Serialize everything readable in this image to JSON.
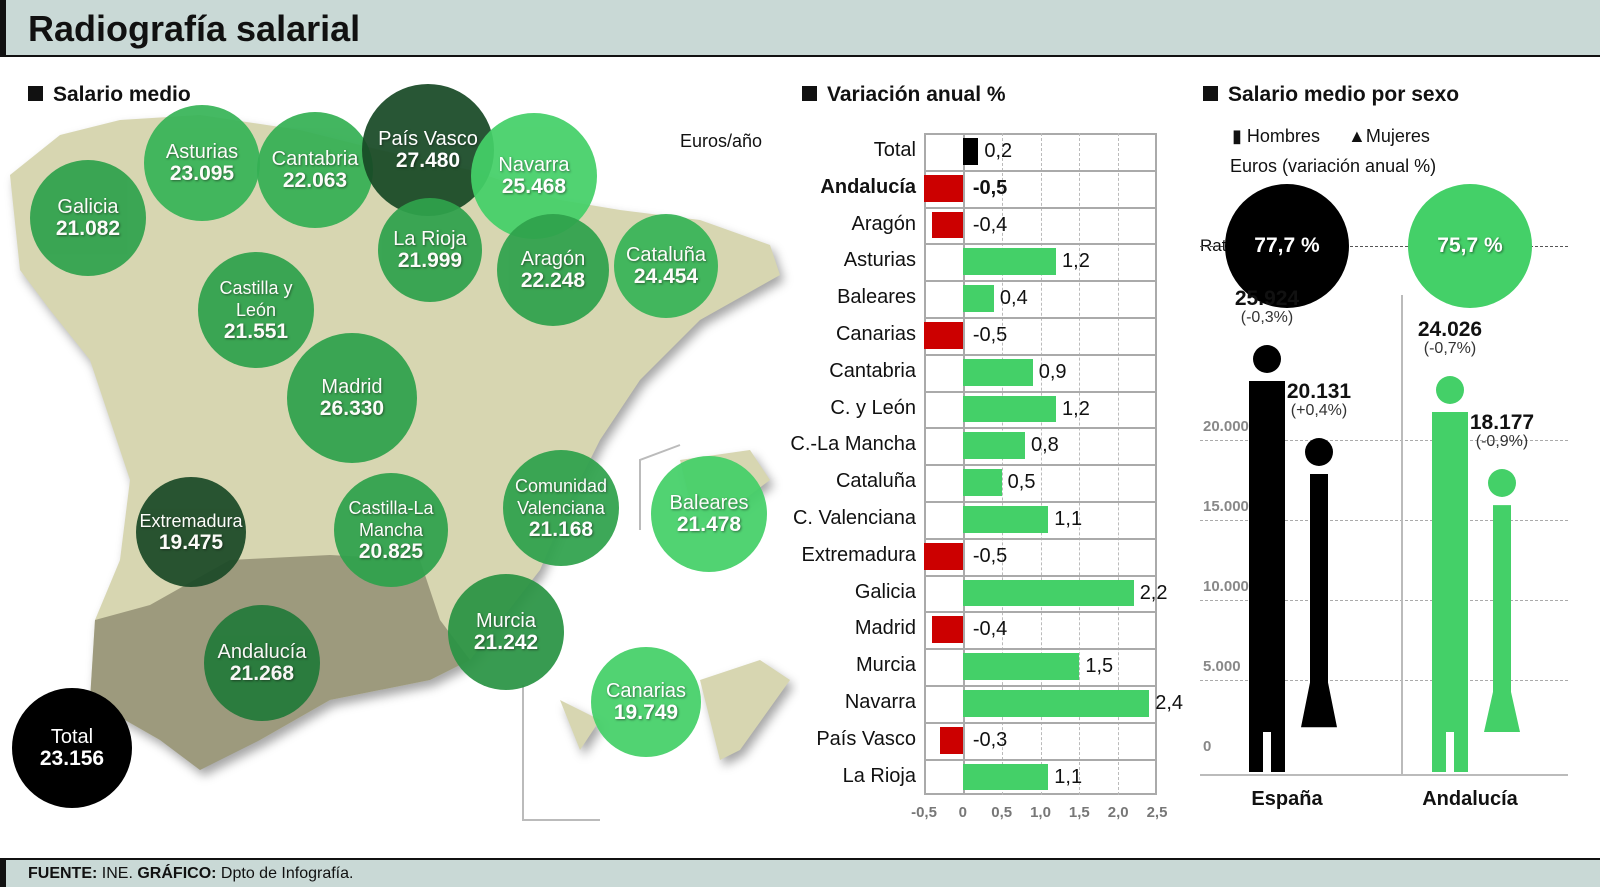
{
  "title": "Radiografía salarial",
  "sections": {
    "map": "Salario medio",
    "bars": "Variación anual %",
    "sex": "Salario medio por sexo"
  },
  "map_unit": "Euros/año",
  "regions": [
    {
      "name": "Galicia",
      "value": "21.082",
      "color": "#2fa24c"
    },
    {
      "name": "Asturias",
      "value": "23.095",
      "color": "#37b457"
    },
    {
      "name": "Cantabria",
      "value": "22.063",
      "color": "#35b054"
    },
    {
      "name": "País Vasco",
      "value": "27.480",
      "color": "#184a26"
    },
    {
      "name": "Navarra",
      "value": "25.468",
      "color": "#44d068"
    },
    {
      "name": "La Rioja",
      "value": "21.999",
      "color": "#2fa24c"
    },
    {
      "name": "Aragón",
      "value": "22.248",
      "color": "#2fa24c"
    },
    {
      "name": "Cataluña",
      "value": "24.454",
      "color": "#37b457"
    },
    {
      "name": "Castilla y León",
      "value": "21.551",
      "color": "#2fa24c"
    },
    {
      "name": "Madrid",
      "value": "26.330",
      "color": "#2fa24c"
    },
    {
      "name": "Extremadura",
      "value": "19.475",
      "color": "#1b4a27"
    },
    {
      "name": "Castilla-La Mancha",
      "value": "20.825",
      "color": "#2fa24c"
    },
    {
      "name": "Comunidad Valenciana",
      "value": "21.168",
      "color": "#2fa24c"
    },
    {
      "name": "Baleares",
      "value": "21.478",
      "color": "#44d068"
    },
    {
      "name": "Andalucía",
      "value": "21.268",
      "color": "#237a3a"
    },
    {
      "name": "Murcia",
      "value": "21.242",
      "color": "#2a9444"
    },
    {
      "name": "Canarias",
      "value": "19.749",
      "color": "#44d068"
    },
    {
      "name": "Total",
      "value": "23.156",
      "color": "#000000"
    }
  ],
  "chart_data": [
    {
      "type": "bar",
      "orientation": "horizontal",
      "title": "Variación anual %",
      "categories": [
        "Total",
        "Andalucía",
        "Aragón",
        "Asturias",
        "Baleares",
        "Canarias",
        "Cantabria",
        "C. y León",
        "C.-La Mancha",
        "Cataluña",
        "C. Valenciana",
        "Extremadura",
        "Galicia",
        "Madrid",
        "Murcia",
        "Navarra",
        "País Vasco",
        "La Rioja"
      ],
      "values": [
        0.2,
        -0.5,
        -0.4,
        1.2,
        0.4,
        -0.5,
        0.9,
        1.2,
        0.8,
        0.5,
        1.1,
        -0.5,
        2.2,
        -0.4,
        1.5,
        2.4,
        -0.3,
        1.1
      ],
      "labels": [
        "0,2",
        "-0,5",
        "-0,4",
        "1,2",
        "0,4",
        "-0,5",
        "0,9",
        "1,2",
        "0,8",
        "0,5",
        "1,1",
        "-0,5",
        "2,2",
        "-0,4",
        "1,5",
        "2,4",
        "-0,3",
        "1,1"
      ],
      "xlim": [
        -0.5,
        2.5
      ],
      "xticks": [
        "-0,5",
        "0",
        "0,5",
        "1,0",
        "1,5",
        "2,0",
        "2,5"
      ],
      "grid": true,
      "colors": {
        "positive": "#44d068",
        "negative": "#cc0000",
        "total": "#000000"
      }
    },
    {
      "type": "bar",
      "title": "Salario medio por sexo",
      "subtitle": "Euros (variación anual %)",
      "legend": [
        "Hombres",
        "Mujeres"
      ],
      "categories": [
        "España",
        "Andalucía"
      ],
      "series": [
        {
          "name": "Hombres",
          "values": [
            25924,
            24026
          ],
          "labels": [
            "25.924",
            "24.026"
          ],
          "changes": [
            "(-0,3%)",
            "(-0,7%)"
          ]
        },
        {
          "name": "Mujeres",
          "values": [
            20131,
            18177
          ],
          "labels": [
            "20.131",
            "18.177"
          ],
          "changes": [
            "(+0,4%)",
            "(-0,9%)"
          ]
        }
      ],
      "ratio_label": "Ratio",
      "ratios": [
        "77,7 %",
        "75,7 %"
      ],
      "yticks": [
        "0",
        "5.000",
        "10.000",
        "15.000",
        "20.000"
      ],
      "ylim": [
        0,
        30000
      ],
      "colors": {
        "España": "#000000",
        "Andalucía": "#44d068"
      }
    }
  ],
  "footer": {
    "source_label": "FUENTE:",
    "source": "INE.",
    "graphic_label": "GRÁFICO:",
    "graphic": "Dpto de Infografía."
  }
}
